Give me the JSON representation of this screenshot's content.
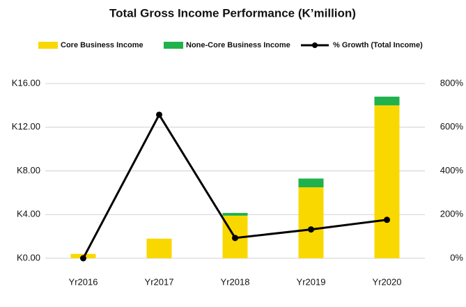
{
  "chart_data": {
    "type": "bar",
    "title": "Total Gross Income Performance (K’million)",
    "categories": [
      "Yr2016",
      "Yr2017",
      "Yr2018",
      "Yr2019",
      "Yr2020"
    ],
    "series": [
      {
        "name": "Core Business Income",
        "color": "#f9d800",
        "values": [
          0.4,
          1.8,
          3.9,
          6.5,
          14.0
        ]
      },
      {
        "name": "None-Core Business Income",
        "color": "#1fb14b",
        "values": [
          0,
          0,
          0.25,
          0.8,
          0.8
        ]
      },
      {
        "name": "% Growth (Total Income)",
        "color": "#000000",
        "type": "line",
        "axis": "y2",
        "values": [
          0,
          657,
          93,
          132,
          176
        ]
      }
    ],
    "stacked": true,
    "ylim": [
      0,
      16
    ],
    "yticks": [
      {
        "value": 0,
        "label": "K0.00"
      },
      {
        "value": 4,
        "label": "K4.00"
      },
      {
        "value": 8,
        "label": "K8.00"
      },
      {
        "value": 12,
        "label": "K12.00"
      },
      {
        "value": 16,
        "label": "K16.00"
      }
    ],
    "y2lim": [
      0,
      800
    ],
    "y2ticks": [
      {
        "value": 0,
        "label": "0%"
      },
      {
        "value": 200,
        "label": "200%"
      },
      {
        "value": 400,
        "label": "400%"
      },
      {
        "value": 600,
        "label": "600%"
      },
      {
        "value": 800,
        "label": "800%"
      }
    ],
    "grid": true,
    "legend": "top"
  }
}
